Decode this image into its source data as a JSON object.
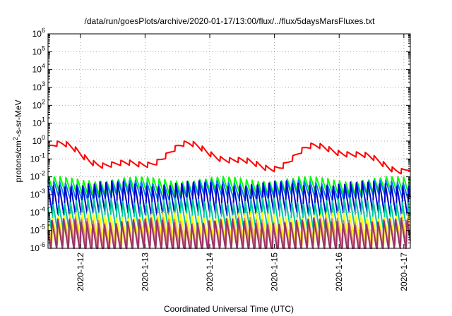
{
  "chart_data": {
    "type": "line",
    "title": "/data/run/goesPlots/archive/2020-01-17/13:00/flux/../flux/5daysMarsFluxes.txt",
    "xlabel": "Coordinated Universal Time (UTC)",
    "ylabel_parts": {
      "pre": "protons/cm",
      "sup": "2",
      "post": "-s-sr-MeV"
    },
    "yscale": "log",
    "ylim_exp": [
      -6,
      6
    ],
    "ytick_base": "10",
    "ytick_exponents": [
      "-6",
      "-5",
      "-4",
      "-3",
      "-2",
      "-1",
      "0",
      "1",
      "2",
      "3",
      "4",
      "5",
      "6"
    ],
    "xlim_days": [
      0,
      5.6
    ],
    "xtick_labels": [
      "2020-1-12",
      "2020-1-13",
      "2020-1-14",
      "2020-1-15",
      "2020-1-16",
      "2020-1-17"
    ],
    "grid": true,
    "series": [
      {
        "color": "#ff0000",
        "base_log": -0.85,
        "amp": 0.5,
        "period": 0.14,
        "wave": "top"
      },
      {
        "color": "#00ff00",
        "base_log": -2.55,
        "amp": 0.45,
        "period": 0.09,
        "wave": "mid"
      },
      {
        "color": "#0080ff",
        "base_log": -2.75,
        "amp": 0.45,
        "period": 0.09,
        "wave": "mid"
      },
      {
        "color": "#0000cc",
        "base_log": -3.25,
        "amp": 0.9,
        "period": 0.09,
        "wave": "mid"
      },
      {
        "color": "#00c8a0",
        "base_log": -4.2,
        "amp": 0.9,
        "period": 0.09,
        "wave": "mid"
      },
      {
        "color": "#ffff00",
        "base_log": -4.9,
        "amp": 0.8,
        "period": 0.09,
        "wave": "low"
      },
      {
        "color": "#e08080",
        "base_log": -5.2,
        "amp": 0.8,
        "period": 0.09,
        "wave": "low"
      },
      {
        "color": "#993366",
        "base_log": -5.35,
        "amp": 0.9,
        "period": 0.09,
        "wave": "low"
      }
    ]
  }
}
